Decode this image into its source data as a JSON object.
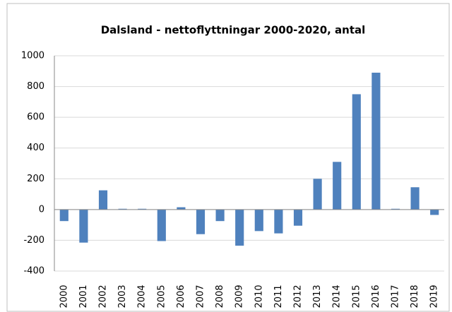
{
  "chart_data": {
    "type": "bar",
    "title": "Dalsland - nettoflyttningar 2000-2020, antal",
    "categories": [
      "2000",
      "2001",
      "2002",
      "2003",
      "2004",
      "2005",
      "2006",
      "2007",
      "2008",
      "2009",
      "2010",
      "2011",
      "2012",
      "2013",
      "2014",
      "2015",
      "2016",
      "2017",
      "2018",
      "2019"
    ],
    "values": [
      -75,
      -215,
      125,
      5,
      5,
      -205,
      15,
      -160,
      -75,
      -235,
      -140,
      -155,
      -105,
      200,
      310,
      750,
      890,
      5,
      145,
      -35
    ],
    "color": "#4f81bd",
    "ylim": [
      -400,
      1000
    ],
    "yticks": [
      -400,
      -200,
      0,
      200,
      400,
      600,
      800,
      1000
    ],
    "grid": true
  }
}
